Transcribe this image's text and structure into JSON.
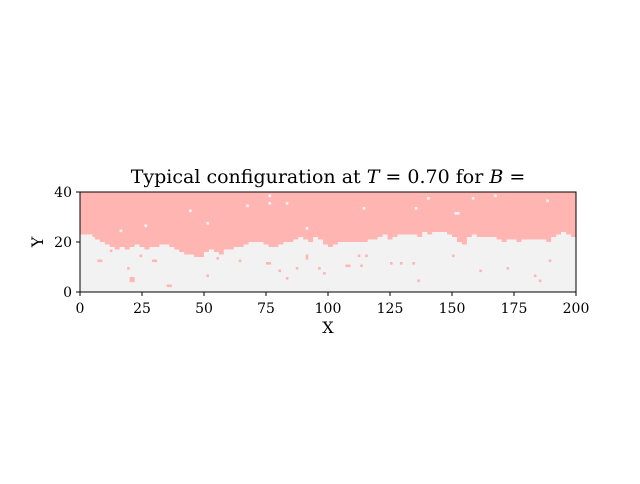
{
  "chart_data": {
    "type": "heatmap",
    "title": "Typical configuration at T = 0.70 for B =",
    "title_parts": {
      "prefix": "Typical configuration at ",
      "var1": "T",
      "eq1": " = 0.70 for ",
      "var2": "B",
      "eq2": " ="
    },
    "xlabel": "X",
    "ylabel": "Y",
    "xlim": [
      0,
      200
    ],
    "ylim": [
      0,
      40
    ],
    "xticks": [
      0,
      25,
      50,
      75,
      100,
      125,
      150,
      175,
      200
    ],
    "yticks": [
      0,
      20,
      40
    ],
    "grid": false,
    "colors": {
      "up": "#FFB6B3",
      "down": "#F2F2F2",
      "frame": "#000000"
    },
    "lattice": {
      "nx": 200,
      "ny": 40
    },
    "interface": {
      "x": [
        0,
        5,
        6,
        8,
        10,
        12,
        14,
        16,
        18,
        20,
        22,
        24,
        26,
        28,
        30,
        32,
        34,
        36,
        38,
        40,
        42,
        44,
        46,
        48,
        50,
        52,
        54,
        56,
        58,
        60,
        62,
        64,
        66,
        68,
        70,
        72,
        74,
        76,
        78,
        80,
        82,
        84,
        86,
        88,
        90,
        92,
        94,
        96,
        98,
        100,
        102,
        104,
        106,
        108,
        110,
        112,
        114,
        116,
        118,
        120,
        122,
        124,
        126,
        128,
        130,
        132,
        134,
        136,
        138,
        140,
        142,
        144,
        146,
        148,
        150,
        152,
        154,
        156,
        158,
        160,
        162,
        164,
        166,
        168,
        170,
        172,
        174,
        176,
        178,
        180,
        182,
        184,
        186,
        188,
        190,
        192,
        194,
        196,
        198
      ],
      "height": [
        23,
        22,
        21,
        20,
        19,
        18,
        17,
        18,
        17,
        18,
        19,
        18,
        17,
        18,
        18,
        19,
        19,
        18,
        17,
        16,
        15,
        15,
        14,
        14,
        16,
        17,
        16,
        15,
        17,
        17,
        18,
        18,
        19,
        20,
        20,
        20,
        19,
        18,
        18,
        19,
        20,
        20,
        21,
        22,
        21,
        20,
        22,
        21,
        19,
        18,
        19,
        20,
        20,
        20,
        20,
        20,
        20,
        21,
        21,
        22,
        23,
        21,
        22,
        23,
        23,
        23,
        23,
        22,
        24,
        23,
        24,
        24,
        24,
        23,
        22,
        20,
        19,
        22,
        23,
        22,
        22,
        22,
        22,
        21,
        20,
        21,
        21,
        20,
        21,
        21,
        21,
        21,
        21,
        20,
        22,
        23,
        24,
        23,
        22
      ]
    },
    "up_flips": [
      [
        7,
        12
      ],
      [
        8,
        12
      ],
      [
        12,
        16
      ],
      [
        19,
        9
      ],
      [
        20,
        5
      ],
      [
        21,
        5
      ],
      [
        20,
        4
      ],
      [
        21,
        4
      ],
      [
        24,
        14
      ],
      [
        29,
        12
      ],
      [
        30,
        12
      ],
      [
        35,
        2
      ],
      [
        36,
        2
      ],
      [
        51,
        6
      ],
      [
        55,
        13
      ],
      [
        64,
        12
      ],
      [
        75,
        11
      ],
      [
        76,
        11
      ],
      [
        80,
        8
      ],
      [
        83,
        5
      ],
      [
        87,
        9
      ],
      [
        91,
        14
      ],
      [
        91,
        13
      ],
      [
        96,
        9
      ],
      [
        98,
        7
      ],
      [
        107,
        10
      ],
      [
        108,
        10
      ],
      [
        113,
        10
      ],
      [
        115,
        14
      ],
      [
        125,
        11
      ],
      [
        129,
        11
      ],
      [
        134,
        11
      ],
      [
        136,
        4
      ],
      [
        150,
        14
      ],
      [
        161,
        8
      ],
      [
        172,
        9
      ],
      [
        183,
        6
      ],
      [
        185,
        4
      ],
      [
        189,
        12
      ],
      [
        112,
        14
      ]
    ],
    "down_flips": [
      [
        16,
        24
      ],
      [
        26,
        26
      ],
      [
        44,
        32
      ],
      [
        51,
        27
      ],
      [
        67,
        34
      ],
      [
        76,
        38
      ],
      [
        76,
        35
      ],
      [
        83,
        35
      ],
      [
        114,
        33
      ],
      [
        135,
        33
      ],
      [
        140,
        37
      ],
      [
        151,
        31
      ],
      [
        152,
        31
      ],
      [
        158,
        37
      ],
      [
        167,
        38
      ],
      [
        188,
        36
      ],
      [
        91,
        25
      ]
    ]
  }
}
